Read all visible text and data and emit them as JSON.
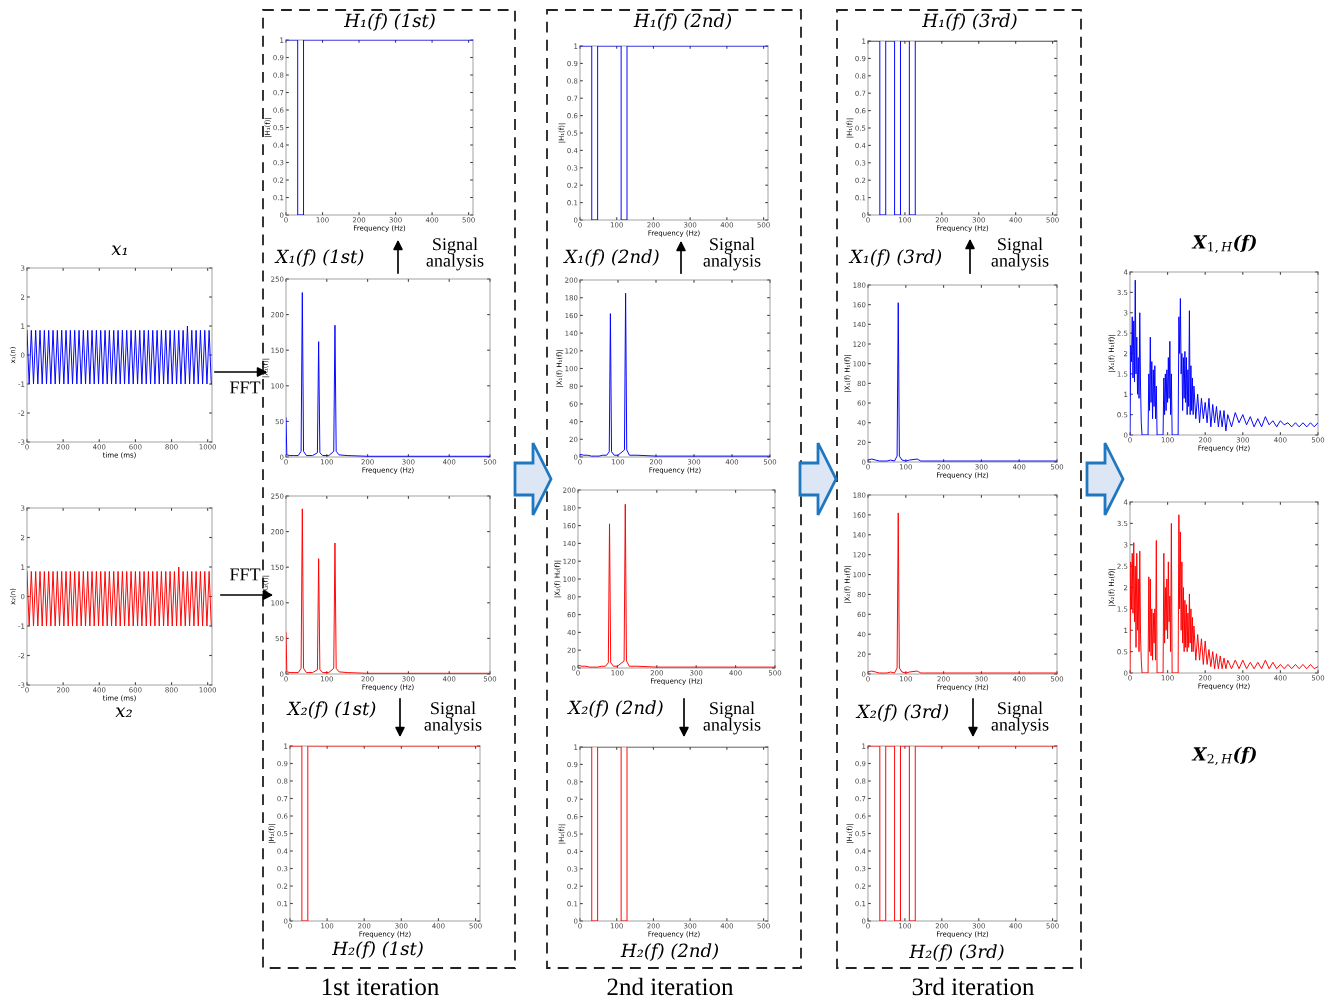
{
  "chart_data": [
    {
      "type": "line",
      "title": "x₁",
      "xlabel": "time (ms)",
      "ylabel": "x₁(n)",
      "xlim": [
        0,
        1024
      ],
      "xticks": [
        0,
        200,
        400,
        600,
        800,
        1000
      ],
      "ylim": [
        -3,
        3
      ],
      "yticks": [
        -3,
        -2,
        -1,
        0,
        1,
        2,
        3
      ],
      "annotations": [
        "FFT"
      ],
      "x": [
        0,
        12,
        24,
        36,
        48,
        60,
        72,
        84,
        96,
        108,
        120,
        132,
        144,
        156,
        168,
        180,
        192,
        204,
        216,
        228,
        240,
        252,
        264,
        276,
        288,
        300,
        312,
        324,
        336,
        348,
        360,
        372,
        384,
        396,
        408,
        420,
        432,
        444,
        456,
        468,
        480,
        492,
        504,
        516,
        528,
        540,
        552,
        564,
        576,
        588,
        600,
        612,
        624,
        636,
        648,
        660,
        672,
        684,
        696,
        708,
        720,
        732,
        744,
        756,
        768,
        780,
        792,
        804,
        816,
        828,
        840,
        852,
        864,
        876,
        888,
        900,
        912,
        924,
        936,
        948,
        960,
        972,
        984,
        996,
        1008,
        1020
      ],
      "series": [
        {
          "color": "#0000ff",
          "values": [
            0.85,
            -1,
            0.85,
            -1,
            0.85,
            -1,
            0.85,
            -1,
            0.85,
            -1,
            0.85,
            -1,
            0.85,
            -1,
            0.85,
            -1,
            0.85,
            -1,
            0.85,
            -1,
            0.85,
            -1,
            0.85,
            -1,
            0.85,
            -1,
            0.85,
            -1,
            0.85,
            -1,
            0.85,
            -1,
            0.85,
            -1,
            0.85,
            -1,
            0.85,
            -1,
            0.85,
            -1,
            0.85,
            -1,
            0.85,
            -1,
            0.85,
            -1,
            0.85,
            -1,
            0.85,
            -1,
            0.85,
            -1,
            0.85,
            -1,
            0.85,
            -1,
            0.85,
            -1,
            0.85,
            -1,
            0.85,
            -1,
            0.85,
            -1,
            0.85,
            -1,
            0.85,
            -1,
            0.85,
            -1,
            0.85,
            -1,
            0.85,
            -1,
            1,
            -1,
            0.85,
            -1,
            0.85,
            -1,
            0.85,
            -1,
            0.85,
            -1,
            0.85,
            -1
          ]
        }
      ]
    },
    {
      "type": "line",
      "title": "x₂",
      "xlabel": "time (ms)",
      "ylabel": "x₂(n)",
      "xlim": [
        0,
        1024
      ],
      "xticks": [
        0,
        200,
        400,
        600,
        800,
        1000
      ],
      "ylim": [
        -3,
        3
      ],
      "yticks": [
        -3,
        -2,
        -1,
        0,
        1,
        2,
        3
      ],
      "annotations": [
        "FFT"
      ],
      "x": [
        0,
        12,
        24,
        36,
        48,
        60,
        72,
        84,
        96,
        108,
        120,
        132,
        144,
        156,
        168,
        180,
        192,
        204,
        216,
        228,
        240,
        252,
        264,
        276,
        288,
        300,
        312,
        324,
        336,
        348,
        360,
        372,
        384,
        396,
        408,
        420,
        432,
        444,
        456,
        468,
        480,
        492,
        504,
        516,
        528,
        540,
        552,
        564,
        576,
        588,
        600,
        612,
        624,
        636,
        648,
        660,
        672,
        684,
        696,
        708,
        720,
        732,
        744,
        756,
        768,
        780,
        792,
        804,
        816,
        828,
        840,
        852,
        864,
        876,
        888,
        900,
        912,
        924,
        936,
        948,
        960,
        972,
        984,
        996,
        1008,
        1020
      ],
      "series": [
        {
          "color": "#ff0000",
          "values": [
            0.85,
            -1,
            0.85,
            -1,
            0.85,
            -1,
            0.85,
            -1,
            0.85,
            -1,
            0.85,
            -1,
            0.85,
            -1,
            0.85,
            -1,
            0.85,
            -1,
            0.85,
            -1,
            0.85,
            -1,
            0.85,
            -1,
            0.85,
            -1,
            0.85,
            -1,
            0.85,
            -1,
            0.85,
            -1,
            0.85,
            -1,
            0.85,
            -1,
            0.85,
            -1,
            0.85,
            -1,
            0.85,
            -1,
            0.85,
            -1,
            0.85,
            -1,
            0.85,
            -1,
            0.85,
            -1,
            0.85,
            -1,
            0.85,
            -1,
            0.85,
            -1,
            0.85,
            -1,
            0.85,
            -1,
            0.85,
            -1,
            0.85,
            -1,
            0.85,
            -1,
            0.85,
            -1,
            0.85,
            -1,
            1,
            -1,
            0.85,
            -1,
            0.85,
            -1,
            0.85,
            -1,
            0.85,
            -1,
            0.85,
            -1,
            0.85,
            -1,
            0.85,
            -1
          ]
        }
      ]
    },
    {
      "type": "line",
      "title": "H₁(f) (1st)",
      "xlabel": "Frequency (Hz)",
      "ylabel": "|H₁(f)|",
      "xlim": [
        0,
        512
      ],
      "xticks": [
        0,
        100,
        200,
        300,
        400,
        500
      ],
      "ylim": [
        0,
        1
      ],
      "yticks": [
        0,
        0.1,
        0.2,
        0.3,
        0.4,
        0.5,
        0.6,
        0.7,
        0.8,
        0.9,
        1
      ],
      "x": [
        0,
        32,
        32,
        48,
        48,
        512
      ],
      "series": [
        {
          "color": "#0000ff",
          "values": [
            1,
            1,
            0,
            0,
            1,
            1
          ]
        }
      ]
    },
    {
      "type": "line",
      "title": "X₁(f) (1st)",
      "xlabel": "Frequency (Hz)",
      "ylabel": "|X₁(f)|",
      "xlim": [
        0,
        500
      ],
      "xticks": [
        0,
        100,
        200,
        300,
        400,
        500
      ],
      "ylim": [
        0,
        250
      ],
      "yticks": [
        0,
        50,
        100,
        150,
        200,
        250
      ],
      "annotations": [
        "Signal\nanalysis"
      ],
      "x": [
        0,
        2,
        10,
        20,
        30,
        37,
        40,
        43,
        50,
        65,
        77,
        80,
        83,
        90,
        105,
        117,
        120,
        123,
        130,
        150,
        200,
        300,
        400,
        500
      ],
      "series": [
        {
          "color": "#0000ff",
          "values": [
            55,
            3,
            2,
            2,
            2,
            8,
            231,
            8,
            2,
            2,
            6,
            162,
            6,
            2,
            2,
            8,
            185,
            8,
            3,
            2,
            1,
            1,
            1,
            1
          ]
        }
      ]
    },
    {
      "type": "line",
      "title": "X₂(f) (1st)",
      "xlabel": "Frequency (Hz)",
      "ylabel": "|X₂(f)|",
      "xlim": [
        0,
        500
      ],
      "xticks": [
        0,
        100,
        200,
        300,
        400,
        500
      ],
      "ylim": [
        0,
        250
      ],
      "yticks": [
        0,
        50,
        100,
        150,
        200,
        250
      ],
      "annotations": [
        "Signal\nanalysis"
      ],
      "x": [
        0,
        2,
        10,
        20,
        30,
        37,
        40,
        43,
        50,
        65,
        77,
        80,
        83,
        90,
        105,
        117,
        120,
        123,
        130,
        150,
        200,
        300,
        400,
        500
      ],
      "series": [
        {
          "color": "#ff0000",
          "values": [
            58,
            3,
            2,
            2,
            2,
            8,
            232,
            8,
            2,
            2,
            6,
            162,
            6,
            2,
            2,
            8,
            184,
            8,
            3,
            2,
            1,
            1,
            1,
            1
          ]
        }
      ]
    },
    {
      "type": "line",
      "title": "H₂(f) (1st)",
      "xlabel": "Frequency (Hz)",
      "ylabel": "|H₂(f)|",
      "xlim": [
        0,
        512
      ],
      "xticks": [
        0,
        100,
        200,
        300,
        400,
        500
      ],
      "ylim": [
        0,
        1
      ],
      "yticks": [
        0,
        0.1,
        0.2,
        0.3,
        0.4,
        0.5,
        0.6,
        0.7,
        0.8,
        0.9,
        1
      ],
      "annotations": [
        "1st iteration"
      ],
      "x": [
        0,
        32,
        32,
        48,
        48,
        512
      ],
      "series": [
        {
          "color": "#ff0000",
          "values": [
            1,
            1,
            0,
            0,
            1,
            1
          ]
        }
      ]
    },
    {
      "type": "line",
      "title": "H₁(f) (2nd)",
      "xlabel": "Frequency (Hz)",
      "ylabel": "|H₁(f)|",
      "xlim": [
        0,
        512
      ],
      "xticks": [
        0,
        100,
        200,
        300,
        400,
        500
      ],
      "ylim": [
        0,
        1
      ],
      "yticks": [
        0,
        0.1,
        0.2,
        0.3,
        0.4,
        0.5,
        0.6,
        0.7,
        0.8,
        0.9,
        1
      ],
      "x": [
        0,
        32,
        32,
        48,
        48,
        112,
        112,
        128,
        128,
        512
      ],
      "series": [
        {
          "color": "#0000ff",
          "values": [
            1,
            1,
            0,
            0,
            1,
            1,
            0,
            0,
            1,
            1
          ]
        }
      ]
    },
    {
      "type": "line",
      "title": "X₁(f) (2nd)",
      "xlabel": "Frequency (Hz)",
      "ylabel": "|X₁(f) H₁(f)|",
      "xlim": [
        0,
        500
      ],
      "xticks": [
        0,
        100,
        200,
        300,
        400,
        500
      ],
      "ylim": [
        0,
        200
      ],
      "yticks": [
        0,
        20,
        40,
        60,
        80,
        100,
        120,
        140,
        160,
        180,
        200
      ],
      "annotations": [
        "Signal\nanalysis"
      ],
      "x": [
        0,
        10,
        20,
        30,
        40,
        50,
        60,
        70,
        77,
        80,
        83,
        90,
        100,
        117,
        120,
        123,
        130,
        150,
        200,
        300,
        400,
        500
      ],
      "series": [
        {
          "color": "#0000ff",
          "values": [
            3,
            2,
            2,
            1,
            1,
            1,
            2,
            2,
            6,
            162,
            6,
            2,
            2,
            8,
            185,
            8,
            2,
            2,
            1,
            1,
            1,
            1
          ]
        }
      ]
    },
    {
      "type": "line",
      "title": "X₂(f) (2nd)",
      "xlabel": "Frequency (Hz)",
      "ylabel": "|X₂(f) H₂(f)|",
      "xlim": [
        0,
        500
      ],
      "xticks": [
        0,
        100,
        200,
        300,
        400,
        500
      ],
      "ylim": [
        0,
        200
      ],
      "yticks": [
        0,
        20,
        40,
        60,
        80,
        100,
        120,
        140,
        160,
        180,
        200
      ],
      "annotations": [
        "Signal\nanalysis"
      ],
      "x": [
        0,
        10,
        20,
        30,
        40,
        50,
        60,
        70,
        77,
        80,
        83,
        90,
        100,
        117,
        120,
        123,
        130,
        150,
        200,
        300,
        400,
        500
      ],
      "series": [
        {
          "color": "#ff0000",
          "values": [
            3,
            2,
            2,
            1,
            1,
            1,
            2,
            2,
            6,
            162,
            6,
            2,
            2,
            8,
            184,
            8,
            2,
            2,
            1,
            1,
            1,
            1
          ]
        }
      ]
    },
    {
      "type": "line",
      "title": "H₂(f) (2nd)",
      "xlabel": "Frequency (Hz)",
      "ylabel": "|H₂(f)|",
      "xlim": [
        0,
        512
      ],
      "xticks": [
        0,
        100,
        200,
        300,
        400,
        500
      ],
      "ylim": [
        0,
        1
      ],
      "yticks": [
        0,
        0.1,
        0.2,
        0.3,
        0.4,
        0.5,
        0.6,
        0.7,
        0.8,
        0.9,
        1
      ],
      "annotations": [
        "2nd iteration"
      ],
      "x": [
        0,
        32,
        32,
        48,
        48,
        112,
        112,
        128,
        128,
        512
      ],
      "series": [
        {
          "color": "#ff0000",
          "values": [
            1,
            1,
            0,
            0,
            1,
            1,
            0,
            0,
            1,
            1
          ]
        }
      ]
    },
    {
      "type": "line",
      "title": "H₁(f) (3rd)",
      "xlabel": "Frequency (Hz)",
      "ylabel": "|H₁(f)|",
      "xlim": [
        0,
        512
      ],
      "xticks": [
        0,
        100,
        200,
        300,
        400,
        500
      ],
      "ylim": [
        0,
        1
      ],
      "yticks": [
        0,
        0.1,
        0.2,
        0.3,
        0.4,
        0.5,
        0.6,
        0.7,
        0.8,
        0.9,
        1
      ],
      "x": [
        0,
        32,
        32,
        48,
        48,
        72,
        72,
        88,
        88,
        112,
        112,
        128,
        128,
        512
      ],
      "series": [
        {
          "color": "#0000ff",
          "values": [
            1,
            1,
            0,
            0,
            1,
            1,
            0,
            0,
            1,
            1,
            0,
            0,
            1,
            1
          ]
        }
      ]
    },
    {
      "type": "line",
      "title": "X₁(f) (3rd)",
      "xlabel": "Frequency (Hz)",
      "ylabel": "|X₁(f) H₁(f)|",
      "xlim": [
        0,
        500
      ],
      "xticks": [
        0,
        100,
        200,
        300,
        400,
        500
      ],
      "ylim": [
        0,
        180
      ],
      "yticks": [
        0,
        20,
        40,
        60,
        80,
        100,
        120,
        140,
        160,
        180
      ],
      "annotations": [
        "Signal\nanalysis"
      ],
      "x": [
        0,
        10,
        20,
        30,
        40,
        50,
        60,
        70,
        77,
        80,
        83,
        90,
        100,
        110,
        130,
        140,
        150,
        200,
        300,
        400,
        500
      ],
      "series": [
        {
          "color": "#0000ff",
          "values": [
            2,
            3,
            2,
            1,
            1,
            1,
            2,
            1,
            6,
            162,
            6,
            2,
            1,
            2,
            3,
            1,
            1,
            1,
            1,
            1,
            1
          ]
        }
      ]
    },
    {
      "type": "line",
      "title": "X₂(f) (3rd)",
      "xlabel": "Frequency (Hz)",
      "ylabel": "|X₂(f) H₂(f)|",
      "xlim": [
        0,
        500
      ],
      "xticks": [
        0,
        100,
        200,
        300,
        400,
        500
      ],
      "ylim": [
        0,
        180
      ],
      "yticks": [
        0,
        20,
        40,
        60,
        80,
        100,
        120,
        140,
        160,
        180
      ],
      "annotations": [
        "Signal\nanalysis"
      ],
      "x": [
        0,
        10,
        20,
        30,
        40,
        50,
        60,
        70,
        77,
        80,
        83,
        90,
        100,
        110,
        130,
        140,
        150,
        200,
        300,
        400,
        500
      ],
      "series": [
        {
          "color": "#ff0000",
          "values": [
            2,
            3,
            2,
            1,
            1,
            1,
            2,
            1,
            6,
            162,
            6,
            2,
            1,
            2,
            3,
            1,
            1,
            1,
            1,
            1,
            1
          ]
        }
      ]
    },
    {
      "type": "line",
      "title": "H₂(f) (3rd)",
      "xlabel": "Frequency (Hz)",
      "ylabel": "|H₂(f)|",
      "xlim": [
        0,
        512
      ],
      "xticks": [
        0,
        100,
        200,
        300,
        400,
        500
      ],
      "ylim": [
        0,
        1
      ],
      "yticks": [
        0,
        0.1,
        0.2,
        0.3,
        0.4,
        0.5,
        0.6,
        0.7,
        0.8,
        0.9,
        1
      ],
      "annotations": [
        "3rd iteration"
      ],
      "x": [
        0,
        32,
        32,
        48,
        48,
        72,
        72,
        88,
        88,
        112,
        112,
        128,
        128,
        512
      ],
      "series": [
        {
          "color": "#ff0000",
          "values": [
            1,
            1,
            0,
            0,
            1,
            1,
            0,
            0,
            1,
            1,
            0,
            0,
            1,
            1
          ]
        }
      ]
    },
    {
      "type": "line",
      "title": "X$_{1,H}$(f)",
      "xlabel": "Frequency (Hz)",
      "ylabel": "|X₁(f) H₁(f)|",
      "xlim": [
        0,
        500
      ],
      "xticks": [
        0,
        100,
        200,
        300,
        400,
        500
      ],
      "ylim": [
        0,
        4
      ],
      "yticks": [
        0,
        0.5,
        1,
        1.5,
        2,
        2.5,
        3,
        3.5,
        4
      ],
      "x": [
        0,
        2,
        4,
        6,
        8,
        10,
        12,
        14,
        16,
        18,
        20,
        22,
        24,
        26,
        28,
        30,
        32,
        48,
        50,
        52,
        54,
        56,
        58,
        60,
        62,
        64,
        66,
        68,
        70,
        72,
        88,
        90,
        92,
        94,
        96,
        98,
        100,
        102,
        104,
        106,
        108,
        110,
        112,
        128,
        130,
        132,
        134,
        136,
        138,
        140,
        142,
        144,
        146,
        148,
        150,
        152,
        154,
        156,
        158,
        160,
        162,
        164,
        166,
        168,
        170,
        175,
        180,
        185,
        190,
        195,
        200,
        205,
        210,
        215,
        220,
        225,
        230,
        235,
        240,
        245,
        250,
        255,
        260,
        270,
        280,
        290,
        300,
        310,
        320,
        330,
        340,
        350,
        360,
        370,
        380,
        390,
        400,
        410,
        420,
        430,
        440,
        450,
        460,
        470,
        480,
        490,
        500
      ],
      "series": [
        {
          "color": "#0000ff",
          "values": [
            0,
            2.2,
            1.8,
            2.9,
            1.4,
            2.8,
            1.3,
            3.8,
            1.5,
            2.4,
            1.0,
            1.9,
            0.9,
            3.0,
            1.2,
            0.3,
            0,
            0,
            1.5,
            0.6,
            2.4,
            0.8,
            1.8,
            0.4,
            1.6,
            0.7,
            1.7,
            0.4,
            1.2,
            0,
            0,
            1.4,
            0.5,
            1.5,
            0.6,
            1.6,
            0.8,
            1.9,
            0.9,
            2.3,
            0.5,
            1.5,
            0,
            0,
            2.9,
            2.0,
            3.35,
            1.5,
            2.0,
            0.6,
            1.9,
            0.9,
            2.05,
            0.8,
            1.9,
            0.5,
            1.6,
            0.7,
            3.05,
            0.5,
            1.7,
            0.6,
            1.4,
            0.5,
            1.2,
            0.4,
            1.0,
            0.3,
            0.9,
            0.4,
            0.8,
            0.3,
            0.9,
            0.2,
            0.75,
            0.3,
            0.7,
            0.2,
            0.6,
            0.2,
            0.6,
            0.1,
            0.5,
            0.2,
            0.55,
            0.3,
            0.5,
            0.25,
            0.45,
            0.2,
            0.4,
            0.2,
            0.45,
            0.25,
            0.35,
            0.2,
            0.35,
            0.25,
            0.3,
            0.2,
            0.3,
            0.2,
            0.3,
            0.2,
            0.3,
            0.2,
            0.3
          ]
        }
      ]
    },
    {
      "type": "line",
      "title": "X$_{2,H}$(f)",
      "xlabel": "Frequency (Hz)",
      "ylabel": "|X₂(f) H₂(f)|",
      "xlim": [
        0,
        500
      ],
      "xticks": [
        0,
        100,
        200,
        300,
        400,
        500
      ],
      "ylim": [
        0,
        4
      ],
      "yticks": [
        0,
        0.5,
        1,
        1.5,
        2,
        2.5,
        3,
        3.5,
        4
      ],
      "x": [
        0,
        2,
        4,
        6,
        8,
        10,
        12,
        14,
        16,
        18,
        20,
        22,
        24,
        26,
        28,
        30,
        32,
        48,
        50,
        52,
        54,
        56,
        58,
        60,
        62,
        64,
        66,
        68,
        70,
        72,
        88,
        90,
        92,
        94,
        96,
        98,
        100,
        102,
        104,
        106,
        108,
        110,
        112,
        128,
        130,
        132,
        134,
        136,
        138,
        140,
        142,
        144,
        146,
        148,
        150,
        152,
        154,
        156,
        158,
        160,
        162,
        164,
        166,
        168,
        170,
        175,
        180,
        185,
        190,
        195,
        200,
        205,
        210,
        215,
        220,
        225,
        230,
        235,
        240,
        245,
        250,
        255,
        260,
        270,
        280,
        290,
        300,
        310,
        320,
        330,
        340,
        350,
        360,
        370,
        380,
        390,
        400,
        410,
        420,
        430,
        440,
        450,
        460,
        470,
        480,
        490,
        500
      ],
      "series": [
        {
          "color": "#ff0000",
          "values": [
            0,
            2.6,
            1.5,
            2.8,
            1.4,
            3.05,
            1.2,
            2.5,
            0.6,
            2.8,
            1.0,
            2.2,
            0.5,
            2.85,
            0.9,
            0.3,
            0,
            0,
            2.25,
            0.5,
            2.2,
            0.4,
            1.5,
            0.3,
            1.4,
            0.7,
            1.5,
            0.3,
            3.1,
            0,
            0,
            2.8,
            0.7,
            2.0,
            1.0,
            2.2,
            0.8,
            2.6,
            1.2,
            1.8,
            0.5,
            3.5,
            0,
            0,
            3.7,
            1.5,
            3.3,
            1.0,
            2.6,
            0.7,
            2.0,
            0.5,
            1.7,
            0.6,
            1.6,
            0.5,
            1.4,
            0.6,
            1.85,
            0.7,
            1.5,
            0.5,
            1.3,
            0.5,
            1.1,
            0.3,
            0.9,
            0.3,
            0.8,
            0.2,
            0.75,
            0.2,
            0.55,
            0.15,
            0.5,
            0.1,
            0.45,
            0.1,
            0.4,
            0.1,
            0.35,
            0.1,
            0.3,
            0.1,
            0.3,
            0.1,
            0.3,
            0.1,
            0.25,
            0.1,
            0.25,
            0.1,
            0.3,
            0.1,
            0.25,
            0.1,
            0.2,
            0.1,
            0.2,
            0.1,
            0.2,
            0.1,
            0.2,
            0.1,
            0.2,
            0.1,
            0.15
          ]
        }
      ]
    }
  ]
}
